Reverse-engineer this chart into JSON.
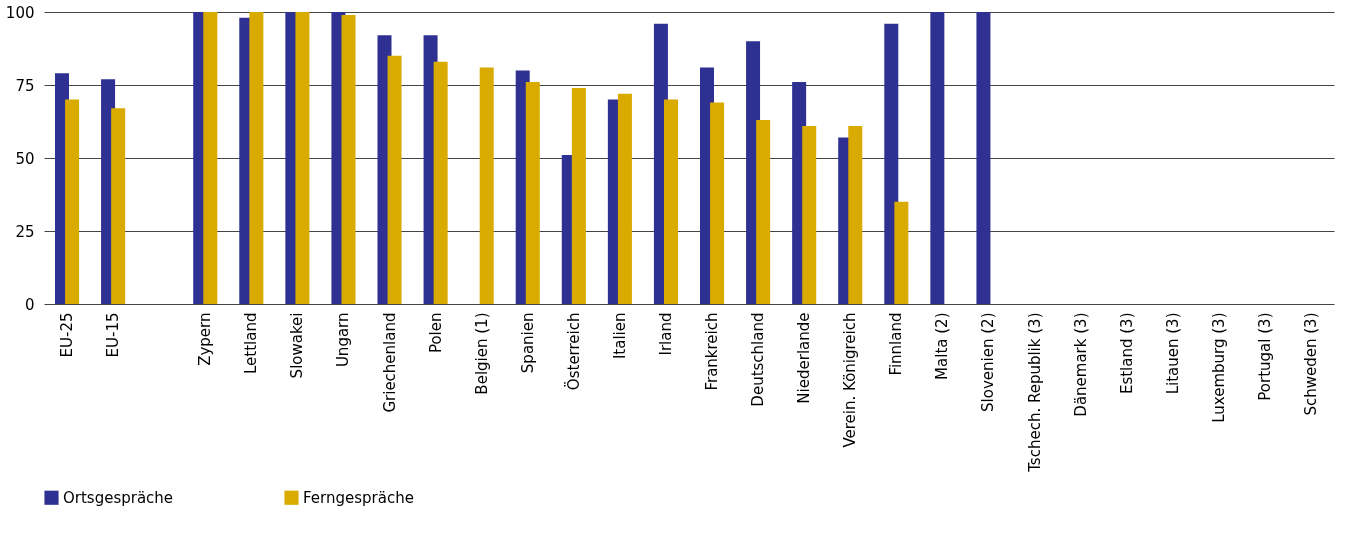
{
  "chart_data": {
    "type": "bar",
    "categories": [
      "EU-25",
      "EU-15",
      null,
      "Zypern",
      "Lettland",
      "Slowakei",
      "Ungarn",
      "Griechenland",
      "Polen",
      "Belgien (1)",
      "Spanien",
      "Österreich",
      "Italien",
      "Irland",
      "Frankreich",
      "Deutschland",
      "Niederlande",
      "Verein. Königreich",
      "Finnland",
      "Malta (2)",
      "Slovenien (2)",
      "Tschech. Republik (3)",
      "Dänemark (3)",
      "Estland (3)",
      "Litauen (3)",
      "Luxemburg (3)",
      "Portugal (3)",
      "Schweden (3)"
    ],
    "series": [
      {
        "name": "Ortsgespräche",
        "color": "#2e3192",
        "values": [
          79,
          77,
          null,
          100,
          98,
          100,
          100,
          92,
          92,
          null,
          80,
          51,
          70,
          96,
          81,
          90,
          76,
          57,
          96,
          100,
          100,
          null,
          null,
          null,
          null,
          null,
          null,
          null
        ]
      },
      {
        "name": "Ferngespräche",
        "color": "#d9aa00",
        "values": [
          70,
          67,
          null,
          100,
          100,
          100,
          99,
          85,
          83,
          81,
          76,
          74,
          72,
          70,
          69,
          63,
          61,
          61,
          35,
          null,
          null,
          null,
          null,
          null,
          null,
          null,
          null,
          null
        ]
      }
    ],
    "ylim": [
      0,
      100
    ],
    "yticks": [
      0,
      25,
      50,
      75,
      100
    ],
    "grid": "y",
    "legend": "bottom"
  }
}
